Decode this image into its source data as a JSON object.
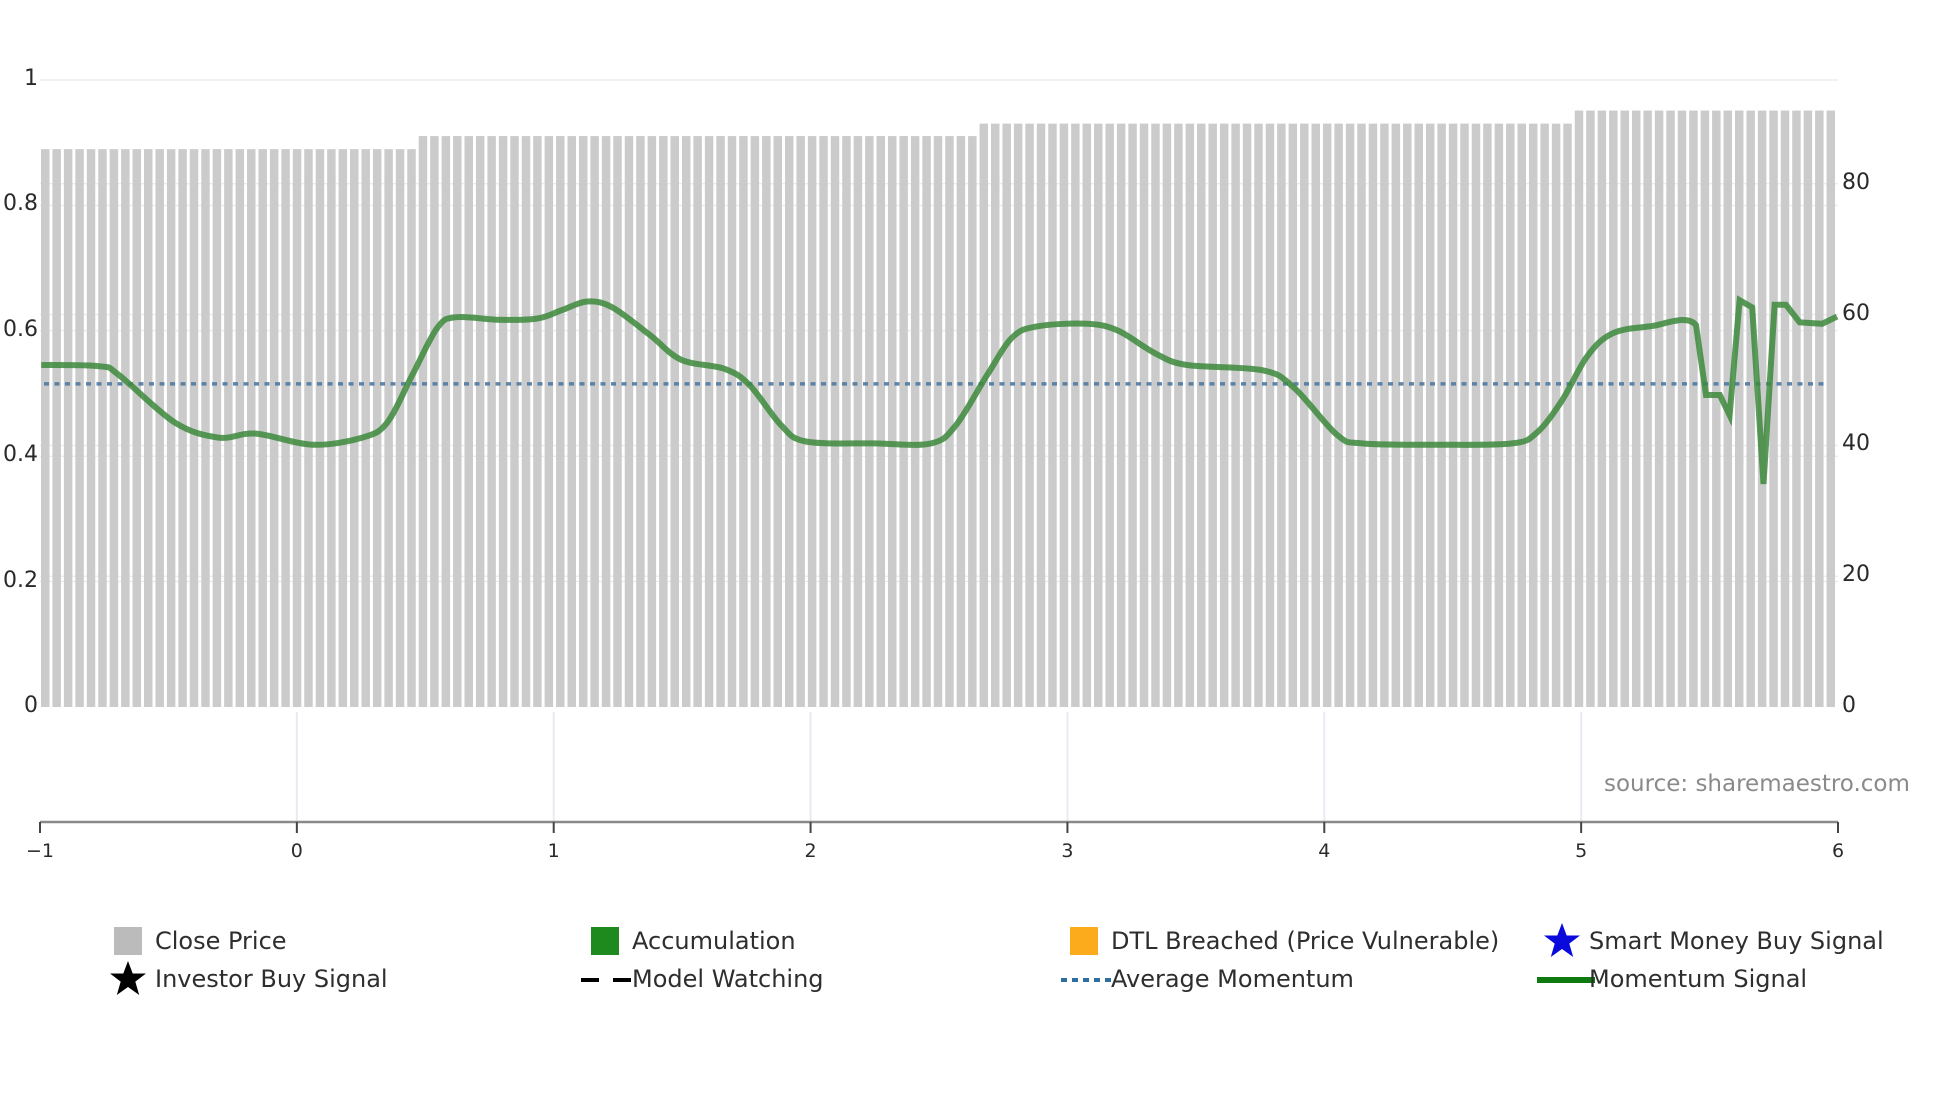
{
  "chart_data": {
    "type": "bar+line",
    "title": "",
    "xlabel": "",
    "ylabel_left": "",
    "ylabel_right": "",
    "x_ticks": [
      "−1",
      "0",
      "1",
      "2",
      "3",
      "4",
      "5",
      "6"
    ],
    "x_tick_values": [
      -1,
      0,
      1,
      2,
      3,
      4,
      5,
      6
    ],
    "xlim": [
      -1,
      6
    ],
    "y_left_ticks": [
      "0",
      "0.2",
      "0.4",
      "0.6",
      "0.8",
      "1"
    ],
    "y_left_tick_values": [
      0,
      0.2,
      0.4,
      0.6,
      0.8,
      1
    ],
    "ylim_left": [
      0,
      1
    ],
    "y_right_ticks": [
      "0",
      "20",
      "40",
      "60",
      "80"
    ],
    "y_right_tick_values": [
      0,
      20,
      40,
      60,
      80
    ],
    "ylim_right": [
      0,
      95.9
    ],
    "grid": true,
    "legend_position": "bottom",
    "annotation": "source: sharemaestro.com",
    "close_price_bars": {
      "name": "Close Price",
      "color": "#cbcbcb",
      "count": 157,
      "segments": [
        {
          "bars": 33,
          "value": 85.3
        },
        {
          "bars": 49,
          "value": 87.3
        },
        {
          "bars": 52,
          "value": 89.2
        },
        {
          "bars": 23,
          "value": 91.2
        }
      ]
    },
    "average_momentum": {
      "name": "Average Momentum",
      "value": 49.4,
      "color": "#4f7ba3"
    },
    "momentum_signal": {
      "name": "Momentum Signal",
      "color": "#3d8a3d",
      "points": [
        [
          -0.995,
          52.3
        ],
        [
          -0.767,
          52.1
        ],
        [
          -0.694,
          50.8
        ],
        [
          -0.475,
          43.5
        ],
        [
          -0.305,
          41.2
        ],
        [
          -0.159,
          41.8
        ],
        [
          0.06,
          40.1
        ],
        [
          0.255,
          41.2
        ],
        [
          0.352,
          43.5
        ],
        [
          0.45,
          50.8
        ],
        [
          0.547,
          58.0
        ],
        [
          0.62,
          59.6
        ],
        [
          0.79,
          59.2
        ],
        [
          0.936,
          59.4
        ],
        [
          1.033,
          60.7
        ],
        [
          1.131,
          62.0
        ],
        [
          1.228,
          61.1
        ],
        [
          1.374,
          56.9
        ],
        [
          1.496,
          53.1
        ],
        [
          1.666,
          51.7
        ],
        [
          1.763,
          49.2
        ],
        [
          1.885,
          43.1
        ],
        [
          1.982,
          40.6
        ],
        [
          2.25,
          40.3
        ],
        [
          2.469,
          40.3
        ],
        [
          2.566,
          43.1
        ],
        [
          2.688,
          50.8
        ],
        [
          2.785,
          56.5
        ],
        [
          2.882,
          58.2
        ],
        [
          3.077,
          58.6
        ],
        [
          3.199,
          57.5
        ],
        [
          3.345,
          54.0
        ],
        [
          3.466,
          52.3
        ],
        [
          3.758,
          51.5
        ],
        [
          3.88,
          48.9
        ],
        [
          4.05,
          41.6
        ],
        [
          4.147,
          40.3
        ],
        [
          4.44,
          40.1
        ],
        [
          4.732,
          40.3
        ],
        [
          4.829,
          42.0
        ],
        [
          4.926,
          46.9
        ],
        [
          5.023,
          53.6
        ],
        [
          5.121,
          57.1
        ],
        [
          5.267,
          58.2
        ],
        [
          5.447,
          58.4
        ],
        [
          5.486,
          47.7
        ],
        [
          5.54,
          47.7
        ],
        [
          5.578,
          44.6
        ],
        [
          5.617,
          62.2
        ],
        [
          5.666,
          61.1
        ],
        [
          5.71,
          34.1
        ],
        [
          5.753,
          61.5
        ],
        [
          5.797,
          61.5
        ],
        [
          5.851,
          58.8
        ],
        [
          5.938,
          58.6
        ],
        [
          5.996,
          59.7
        ]
      ]
    },
    "legend": [
      {
        "label": "Close Price",
        "marker": "square",
        "color": "#bbbbbb"
      },
      {
        "label": "Accumulation",
        "marker": "square",
        "color": "#1e8a1e"
      },
      {
        "label": "DTL Breached (Price Vulnerable)",
        "marker": "square",
        "color": "#fbab1c"
      },
      {
        "label": "Smart Money Buy Signal",
        "marker": "star",
        "color": "#0a0adc"
      },
      {
        "label": "Investor Buy Signal",
        "marker": "star",
        "color": "#000000"
      },
      {
        "label": "Model Watching",
        "marker": "dashed-line",
        "color": "#000000"
      },
      {
        "label": "Average Momentum",
        "marker": "dotted-line",
        "color": "#2f6f9f"
      },
      {
        "label": "Momentum Signal",
        "marker": "solid-line",
        "color": "#0f7a0f"
      }
    ]
  },
  "source_label": "source: sharemaestro.com"
}
